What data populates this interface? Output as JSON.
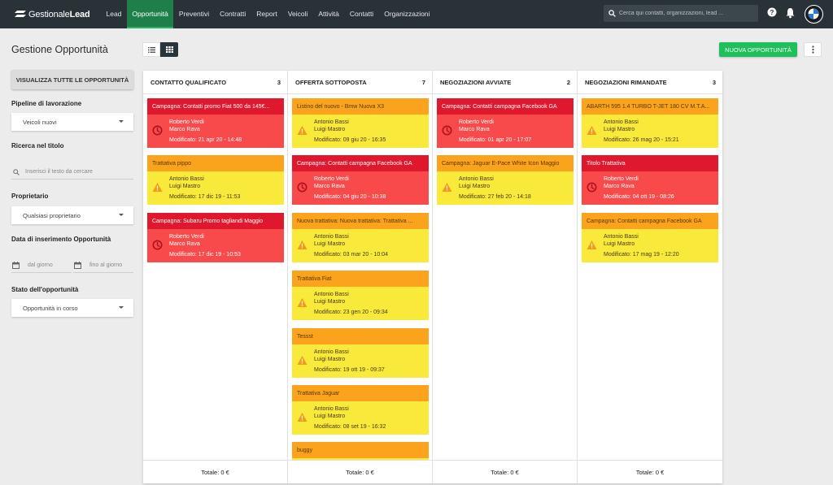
{
  "brand": {
    "part1": "Gestionale",
    "part2": "Lead"
  },
  "nav": [
    "Lead",
    "Opportunità",
    "Preventivi",
    "Contratti",
    "Report",
    "Veicoli",
    "Attività",
    "Contatti",
    "Organizzazioni"
  ],
  "nav_active": "Opportunità",
  "search": {
    "placeholder": "Cerca qui contatti, organizzazioni, lead ..."
  },
  "page": {
    "title": "Gestione Opportunità",
    "new_button": "NUOVA OPPORTUNITÀ"
  },
  "sidebar": {
    "show_all": "VISUALIZZA TUTTE LE OPPORTUNITÀ",
    "pipeline_label": "Pipeline di lavorazione",
    "pipeline_value": "Veicoli nuovi",
    "search_label": "Ricerca nel titolo",
    "search_placeholder": "Inserisci il testo da cercare",
    "owner_label": "Proprietario",
    "owner_value": "Qualsiasi proprietario",
    "date_label": "Data di inserimento Opportunità",
    "date_from": "dal giorno",
    "date_to": "fino al giorno",
    "state_label": "Stato dell'opportunità",
    "state_value": "Opportunità in corso"
  },
  "colors": {
    "red_title": "#e0182d",
    "red_body": "#f84a4a",
    "orange_title": "#fba31c",
    "yellow_body": "#f9e93a",
    "active_nav": "#1f7f4b",
    "new_button": "#1fbf5b"
  },
  "columns": [
    {
      "title": "CONTATTO QUALIFICATO",
      "count": "3",
      "total": "Totale: 0 €",
      "cards": [
        {
          "title": "Campagna: Contatti promo Fiat 500 da 145€...",
          "contact": "Roberto Verdi",
          "owner": "Marco Rava",
          "modified": "Modificato: 21 apr 20 - 14:48",
          "status": "red",
          "icon": "clock-icon"
        },
        {
          "title": "Trattativa pippo",
          "contact": "Antonio Bassi",
          "owner": "Luigi Mastro",
          "modified": "Modificato: 17 dic 19 - 11:53",
          "status": "orange",
          "icon": "warning-icon"
        },
        {
          "title": "Campagna: Subaru Promo tagliandi Maggio",
          "contact": "Roberto Verdi",
          "owner": "Marco Rava",
          "modified": "Modificato: 17 dic 19 - 10:53",
          "status": "red",
          "icon": "clock-icon"
        }
      ]
    },
    {
      "title": "OFFERTA SOTTOPOSTA",
      "count": "7",
      "total": "Totale: 0 €",
      "cards": [
        {
          "title": "Listino del nuovo - Bmw Nuova X3",
          "contact": "Antonio Bassi",
          "owner": "Luigi Mastro",
          "modified": "Modificato: 09 giu 20 - 16:35",
          "status": "orange",
          "icon": "warning-icon"
        },
        {
          "title": "Campagna: Contatti campagna Facebook GA",
          "contact": "Roberto Verdi",
          "owner": "Marco Rava",
          "modified": "Modificato: 04 giu 20 - 10:38",
          "status": "red",
          "icon": "clock-icon"
        },
        {
          "title": "Nuova trattativa: Nuova trattativa: Trattativa ...",
          "contact": "Antonio Bassi",
          "owner": "Luigi Mastro",
          "modified": "Modificato: 03 mar 20 - 10:04",
          "status": "orange",
          "icon": "warning-icon"
        },
        {
          "title": "Trattativa Fiat",
          "contact": "Antonio Bassi",
          "owner": "Luigi Mastro",
          "modified": "Modificato: 23 gen 20 - 09:34",
          "status": "orange",
          "icon": "warning-icon"
        },
        {
          "title": "Tessst",
          "contact": "Antonio Bassi",
          "owner": "Luigi Mastro",
          "modified": "Modificato: 19 ott 19 - 09:37",
          "status": "orange",
          "icon": "warning-icon"
        },
        {
          "title": "Trattativa Jaguar",
          "contact": "Antonio Bassi",
          "owner": "Luigi Mastro",
          "modified": "Modificato: 08 set 19 - 16:32",
          "status": "orange",
          "icon": "warning-icon"
        },
        {
          "title": "buggy",
          "contact": "",
          "owner": "",
          "modified": "",
          "status": "orange",
          "icon": "warning-icon"
        }
      ]
    },
    {
      "title": "NEGOZIAZIONI AVVIATE",
      "count": "2",
      "total": "Totale: 0 €",
      "cards": [
        {
          "title": "Campagna: Contatti campagna Facebook GA",
          "contact": "Roberto Verdi",
          "owner": "Marco Rava",
          "modified": "Modificato: 01 apr 20 - 17:07",
          "status": "red",
          "icon": "clock-icon"
        },
        {
          "title": "Campagna: Jaguar E-Pace White Icon Maggio",
          "contact": "Antonio Bassi",
          "owner": "Luigi Mastro",
          "modified": "Modificato: 27 feb 20 - 14:18",
          "status": "orange",
          "icon": "warning-icon"
        }
      ]
    },
    {
      "title": "NEGOZIAZIONI RIMANDATE",
      "count": "3",
      "total": "Totale: 0 €",
      "cards": [
        {
          "title": "ABARTH 595 1.4 TURBO T-JET 180 CV M.T.A...",
          "contact": "Antonio Bassi",
          "owner": "Luigi Mastro",
          "modified": "Modificato: 26 mag 20 - 15:21",
          "status": "orange",
          "icon": "warning-icon"
        },
        {
          "title": "Titolo Trattativa",
          "contact": "Roberto Verdi",
          "owner": "Marco Rava",
          "modified": "Modificato: 04 ott 19 - 08:26",
          "status": "red",
          "icon": "clock-icon"
        },
        {
          "title": "Campagna: Contatti campagna Facebook GA",
          "contact": "Antonio Bassi",
          "owner": "Luigi Mastro",
          "modified": "Modificato: 17 mag 19 - 12:20",
          "status": "orange",
          "icon": "warning-icon"
        }
      ]
    }
  ]
}
